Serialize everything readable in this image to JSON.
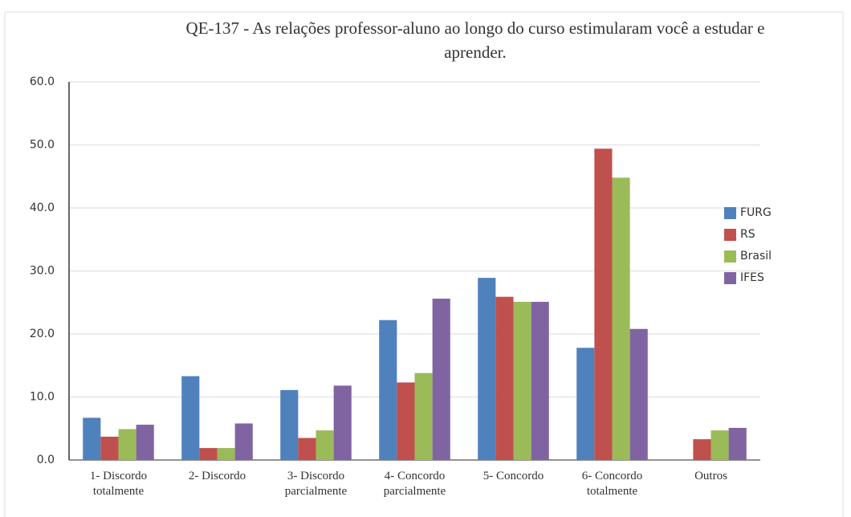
{
  "chart_data": {
    "type": "bar",
    "title": "QE-137 - As relações professor-aluno ao longo do curso estimularam você a estudar e aprender.",
    "categories": [
      "1- Discordo totalmente",
      "2- Discordo",
      "3- Discordo parcialmente",
      "4- Concordo parcialmente",
      "5- Concordo",
      "6- Concordo totalmente",
      "Outros"
    ],
    "series": [
      {
        "name": "FURG",
        "color": "#4f81bd",
        "values": [
          6.7,
          13.3,
          11.1,
          22.2,
          28.9,
          17.8,
          null
        ]
      },
      {
        "name": "RS",
        "color": "#c0504d",
        "values": [
          3.7,
          1.9,
          3.5,
          12.3,
          25.9,
          49.4,
          3.3
        ]
      },
      {
        "name": "Brasil",
        "color": "#9bbb59",
        "values": [
          4.9,
          1.9,
          4.7,
          13.8,
          25.1,
          44.8,
          4.7
        ]
      },
      {
        "name": "IFES",
        "color": "#8064a2",
        "values": [
          5.6,
          5.8,
          11.8,
          25.6,
          25.1,
          20.8,
          5.1
        ]
      }
    ],
    "ylim": [
      0,
      60
    ],
    "yticks": [
      {
        "value": 0,
        "label": "0.0"
      },
      {
        "value": 10,
        "label": "10.0"
      },
      {
        "value": 20,
        "label": "20.0"
      },
      {
        "value": 30,
        "label": "30.0"
      },
      {
        "value": 40,
        "label": "40.0"
      },
      {
        "value": 50,
        "label": "50.0"
      },
      {
        "value": 60,
        "label": "60.0"
      }
    ],
    "grid": true,
    "legend": "right"
  }
}
